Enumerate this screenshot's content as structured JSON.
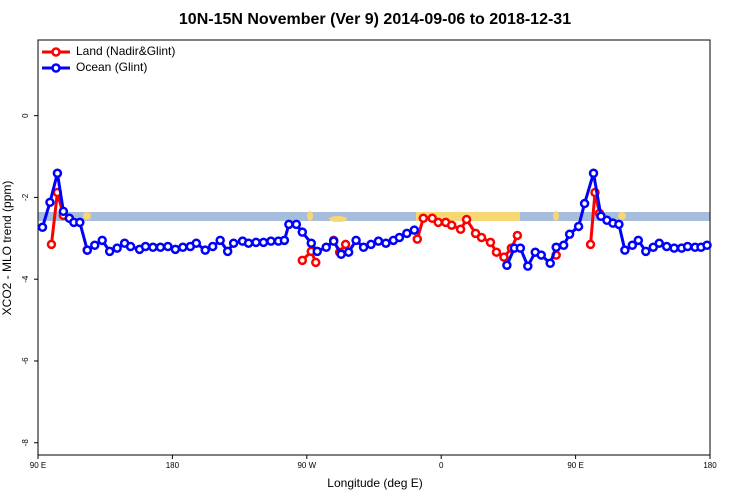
{
  "chart_data": {
    "type": "line",
    "title": "10N-15N November (Ver 9)   2014-09-06 to 2018-12-31",
    "x_label": "Longitude (deg E)",
    "y_label": "XCO2 - MLO trend (ppm)",
    "xlim": [
      90,
      540
    ],
    "ylim": [
      -8.3,
      1.85
    ],
    "xticks": [
      {
        "value": 90,
        "label": "90 E"
      },
      {
        "value": 180,
        "label": "180"
      },
      {
        "value": 270,
        "label": "90 W"
      },
      {
        "value": 360,
        "label": "0"
      },
      {
        "value": 450,
        "label": "90 E"
      },
      {
        "value": 540,
        "label": "180"
      }
    ],
    "yticks": [
      -8,
      -6,
      -4,
      -2,
      0
    ],
    "legend": "top-left",
    "series": [
      {
        "name": "Land (Nadir&Glint)",
        "color": "#ff0000",
        "x": [
          99,
          103,
          107,
          115,
          123,
          250,
          267,
          273,
          276,
          282,
          288,
          292,
          296,
          320,
          344,
          348,
          354,
          358,
          363,
          367,
          373,
          377,
          383,
          387,
          393,
          397,
          402,
          407,
          411,
          425,
          437,
          450,
          460,
          463,
          466
        ],
        "values": [
          -3.15,
          -1.88,
          -2.44,
          null,
          -3.29,
          null,
          -3.54,
          -3.32,
          -3.59,
          null,
          -3.05,
          -3.34,
          -3.15,
          null,
          -3.02,
          -2.51,
          -2.51,
          -2.61,
          -2.61,
          -2.68,
          -2.78,
          -2.54,
          -2.88,
          -2.98,
          -3.1,
          -3.34,
          -3.46,
          -3.24,
          -2.93,
          null,
          -3.41,
          null,
          -3.15,
          -1.88,
          -2.39
        ]
      },
      {
        "name": "Ocean (Glint)",
        "color": "#0000ff",
        "x": [
          93,
          98,
          103,
          107,
          111,
          114,
          118,
          123,
          128,
          133,
          138,
          143,
          148,
          152,
          158,
          162,
          167,
          172,
          177,
          182,
          187,
          192,
          196,
          202,
          207,
          212,
          217,
          221,
          227,
          231,
          236,
          241,
          246,
          251,
          255,
          258,
          263,
          267,
          273,
          277,
          283,
          288,
          293,
          298,
          303,
          308,
          313,
          318,
          323,
          328,
          332,
          337,
          342,
          372,
          404,
          409,
          413,
          418,
          423,
          427,
          433,
          437,
          442,
          446,
          452,
          456,
          462,
          467,
          471,
          475,
          479,
          483,
          488,
          492,
          497,
          502,
          506,
          511,
          516,
          521,
          525,
          530,
          534,
          538
        ],
        "values": [
          -2.73,
          -2.12,
          -1.41,
          -2.34,
          -2.51,
          -2.61,
          -2.61,
          -3.29,
          -3.17,
          -3.05,
          -3.32,
          -3.24,
          -3.12,
          -3.2,
          -3.27,
          -3.2,
          -3.22,
          -3.22,
          -3.2,
          -3.27,
          -3.22,
          -3.2,
          -3.12,
          -3.29,
          -3.2,
          -3.05,
          -3.32,
          -3.12,
          -3.07,
          -3.12,
          -3.1,
          -3.1,
          -3.07,
          -3.07,
          -3.05,
          -2.66,
          -2.66,
          -2.85,
          -3.12,
          -3.32,
          -3.22,
          -3.07,
          -3.39,
          -3.34,
          -3.05,
          -3.22,
          -3.15,
          -3.07,
          -3.12,
          -3.05,
          -2.98,
          -2.88,
          -2.8,
          null,
          -3.66,
          -3.24,
          -3.24,
          -3.68,
          -3.34,
          -3.41,
          -3.61,
          -3.22,
          -3.17,
          -2.9,
          -2.71,
          -2.15,
          -1.41,
          -2.46,
          -2.56,
          -2.63,
          -2.66,
          -3.29,
          -3.17,
          -3.05,
          -3.32,
          -3.22,
          -3.12,
          -3.2,
          -3.24,
          -3.24,
          -3.2,
          -3.22,
          -3.22,
          -3.17
        ]
      }
    ]
  }
}
